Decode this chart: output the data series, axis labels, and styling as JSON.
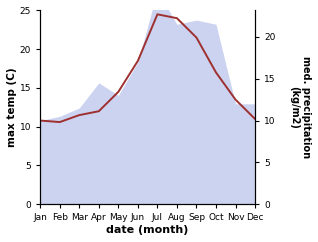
{
  "months": [
    "Jan",
    "Feb",
    "Mar",
    "Apr",
    "May",
    "Jun",
    "Jul",
    "Aug",
    "Sep",
    "Oct",
    "Nov",
    "Dec"
  ],
  "temp_C": [
    10.8,
    10.6,
    11.5,
    12.0,
    14.5,
    18.5,
    24.5,
    24.0,
    21.5,
    17.0,
    13.5,
    11.0
  ],
  "precip_kg": [
    10.0,
    10.5,
    11.5,
    14.5,
    13.0,
    17.0,
    25.5,
    21.5,
    22.0,
    21.5,
    12.0,
    12.0
  ],
  "temp_ylim": [
    0,
    25
  ],
  "precip_ylim": [
    0,
    23.15
  ],
  "ylabel_left": "max temp (C)",
  "ylabel_right": "med. precipitation\n(kg/m2)",
  "xlabel": "date (month)",
  "line_color": "#9e3030",
  "fill_color": "#b0bce8",
  "fill_alpha": 0.65,
  "bg_color": "#ffffff",
  "left_ticks": [
    0,
    5,
    10,
    15,
    20,
    25
  ],
  "right_ticks": [
    0,
    5,
    10,
    15,
    20
  ],
  "right_tick_labels": [
    "0",
    "5",
    "10",
    "15",
    "20"
  ]
}
